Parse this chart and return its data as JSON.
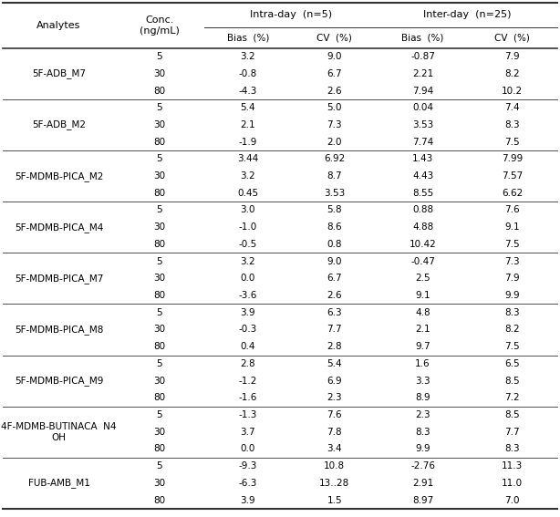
{
  "analytes": [
    "5F-ADB_M7",
    "5F-ADB_M2",
    "5F-MDMB-PICA_M2",
    "5F-MDMB-PICA_M4",
    "5F-MDMB-PICA_M7",
    "5F-MDMB-PICA_M8",
    "5F-MDMB-PICA_M9",
    "4F-MDMB-BUTINACA  N4\nOH",
    "FUB-AMB_M1"
  ],
  "concentrations": [
    "5",
    "30",
    "80"
  ],
  "intra_bias": [
    [
      "3.2",
      "-0.8",
      "-4.3"
    ],
    [
      "5.4",
      "2.1",
      "-1.9"
    ],
    [
      "3.44",
      "3.2",
      "0.45"
    ],
    [
      "3.0",
      "-1.0",
      "-0.5"
    ],
    [
      "3.2",
      "0.0",
      "-3.6"
    ],
    [
      "3.9",
      "-0.3",
      "0.4"
    ],
    [
      "2.8",
      "-1.2",
      "-1.6"
    ],
    [
      "-1.3",
      "3.7",
      "0.0"
    ],
    [
      "-9.3",
      "-6.3",
      "3.9"
    ]
  ],
  "intra_cv": [
    [
      "9.0",
      "6.7",
      "2.6"
    ],
    [
      "5.0",
      "7.3",
      "2.0"
    ],
    [
      "6.92",
      "8.7",
      "3.53"
    ],
    [
      "5.8",
      "8.6",
      "0.8"
    ],
    [
      "9.0",
      "6.7",
      "2.6"
    ],
    [
      "6.3",
      "7.7",
      "2.8"
    ],
    [
      "5.4",
      "6.9",
      "2.3"
    ],
    [
      "7.6",
      "7.8",
      "3.4"
    ],
    [
      "10.8",
      "13..28",
      "1.5"
    ]
  ],
  "inter_bias": [
    [
      "-0.87",
      "2.21",
      "7.94"
    ],
    [
      "0.04",
      "3.53",
      "7.74"
    ],
    [
      "1.43",
      "4.43",
      "8.55"
    ],
    [
      "0.88",
      "4.88",
      "10.42"
    ],
    [
      "-0.47",
      "2.5",
      "9.1"
    ],
    [
      "4.8",
      "2.1",
      "9.7"
    ],
    [
      "1.6",
      "3.3",
      "8.9"
    ],
    [
      "2.3",
      "8.3",
      "9.9"
    ],
    [
      "-2.76",
      "2.91",
      "8.97"
    ]
  ],
  "inter_cv": [
    [
      "7.9",
      "8.2",
      "10.2"
    ],
    [
      "7.4",
      "8.3",
      "7.5"
    ],
    [
      "7.99",
      "7.57",
      "6.62"
    ],
    [
      "7.6",
      "9.1",
      "7.5"
    ],
    [
      "7.3",
      "7.9",
      "9.9"
    ],
    [
      "8.3",
      "8.2",
      "7.5"
    ],
    [
      "6.5",
      "8.5",
      "7.2"
    ],
    [
      "8.5",
      "7.7",
      "8.3"
    ],
    [
      "11.3",
      "11.0",
      "7.0"
    ]
  ],
  "bg_color": "#ffffff",
  "text_color": "#000000",
  "font_size": 7.5,
  "header_font_size": 8.0
}
